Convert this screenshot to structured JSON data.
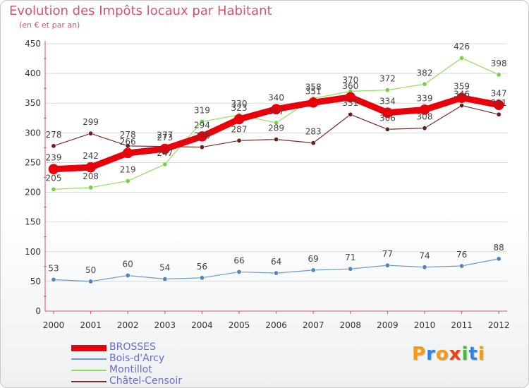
{
  "header": {
    "title": "Evolution des Impôts locaux par Habitant",
    "subtitle": "(en € et par an)"
  },
  "colors": {
    "title": "#d2556b",
    "grid": "#d9d9d9",
    "axis": "#d2556b",
    "legend_text": "#6b6bd6"
  },
  "chart_data": {
    "type": "line",
    "title": "Evolution des Impôts locaux par Habitant",
    "subtitle": "(en € et par an)",
    "xlabel": "",
    "ylabel": "",
    "x": [
      "2000",
      "2001",
      "2002",
      "2003",
      "2004",
      "2005",
      "2006",
      "2007",
      "2008",
      "2009",
      "2010",
      "2011",
      "2012"
    ],
    "ylim": [
      0,
      450
    ],
    "yticks": [
      0,
      50,
      100,
      150,
      200,
      250,
      300,
      350,
      400,
      450
    ],
    "grid": true,
    "legend_position": "bottom-left",
    "series": [
      {
        "name": "BROSSES",
        "color": "#e8000b",
        "width": 9,
        "marker_color": "#e8000b",
        "values": [
          239,
          242,
          266,
          273,
          294,
          323,
          340,
          351,
          360,
          334,
          339,
          359,
          347
        ]
      },
      {
        "name": "Bois-d'Arcy",
        "color": "#6b9ac4",
        "width": 1.2,
        "marker_color": "#4f86c0",
        "values": [
          53,
          50,
          60,
          54,
          56,
          66,
          64,
          69,
          71,
          77,
          74,
          76,
          88
        ]
      },
      {
        "name": "Montillot",
        "color": "#8fe05a",
        "width": 1.2,
        "marker_color": "#78d044",
        "values": [
          205,
          208,
          219,
          247,
          319,
          330,
          317,
          358,
          370,
          372,
          382,
          426,
          398
        ]
      },
      {
        "name": "Châtel-Censoir",
        "color": "#7a2a2a",
        "width": 1.2,
        "marker_color": "#6a1e1e",
        "values": [
          278,
          299,
          278,
          277,
          276,
          287,
          289,
          283,
          331,
          306,
          308,
          346,
          331
        ]
      }
    ]
  },
  "logo": {
    "letters": [
      "P",
      "r",
      "o",
      "x",
      "i",
      "t",
      "i"
    ],
    "colors": [
      "#f39c12",
      "#2e86de",
      "#f39c12",
      "#e84118",
      "#44bd32",
      "#2e86de",
      "#f39c12"
    ]
  }
}
